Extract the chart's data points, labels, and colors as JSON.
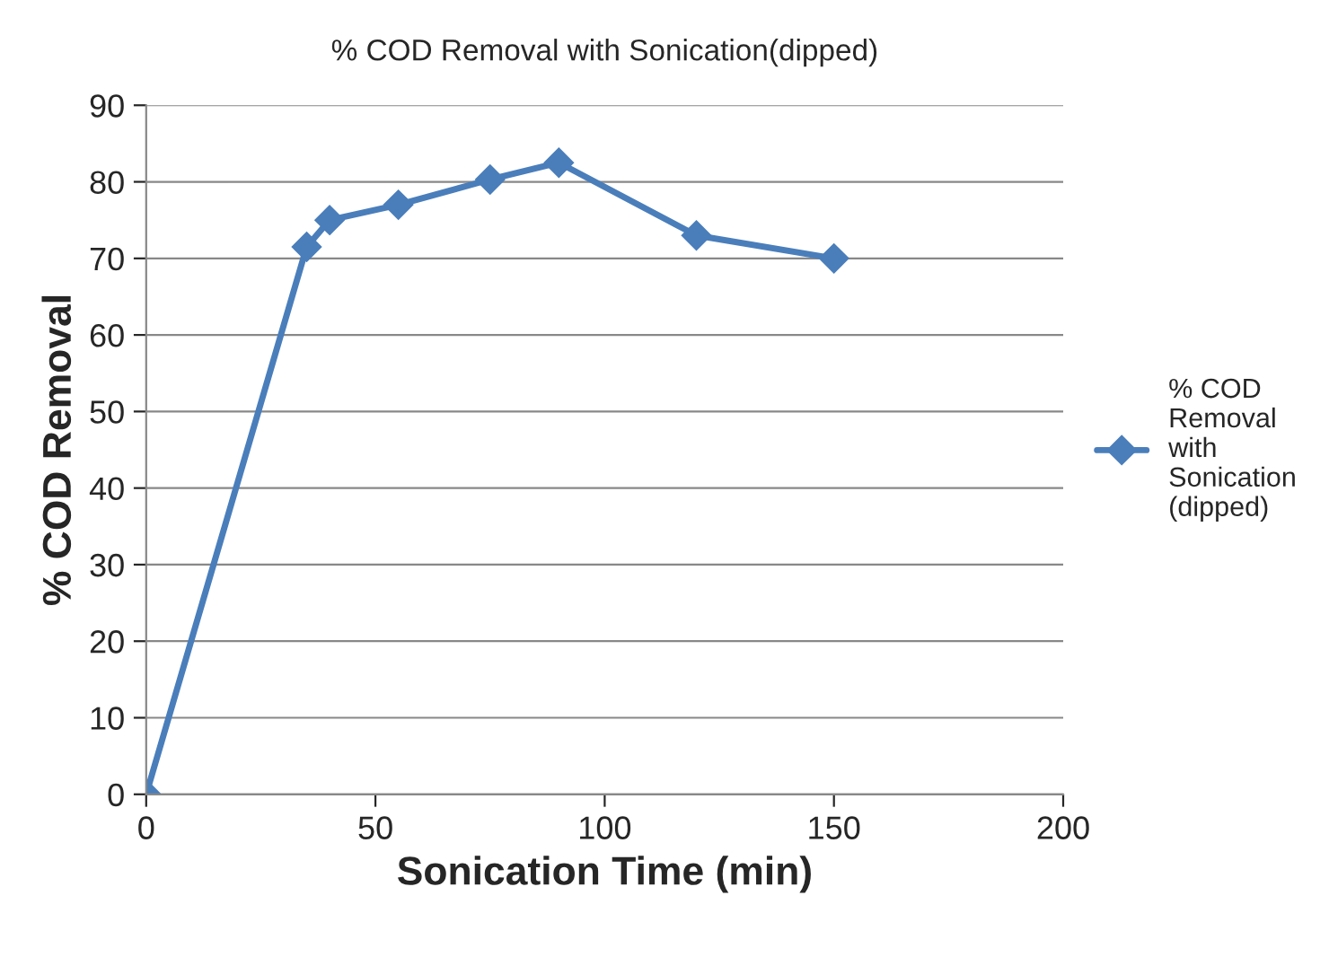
{
  "chart_data": {
    "type": "line",
    "title": "% COD Removal with Sonication(dipped)",
    "xlabel": "Sonication Time (min)",
    "ylabel": "% COD Removal",
    "x": [
      0,
      35,
      40,
      55,
      75,
      90,
      120,
      150
    ],
    "series": [
      {
        "name": "% COD Removal with Sonication (dipped)",
        "color": "#4a7ebb",
        "values": [
          0,
          71.5,
          75,
          77,
          80.3,
          82.5,
          73,
          70
        ]
      }
    ],
    "xlim": [
      0,
      200
    ],
    "xticks": [
      0,
      50,
      100,
      150,
      200
    ],
    "ylim": [
      0,
      90
    ],
    "yticks": [
      0,
      10,
      20,
      30,
      40,
      50,
      60,
      70,
      80,
      90
    ],
    "grid": "y",
    "legend": "right",
    "marker": "diamond",
    "line_style": "solid"
  }
}
